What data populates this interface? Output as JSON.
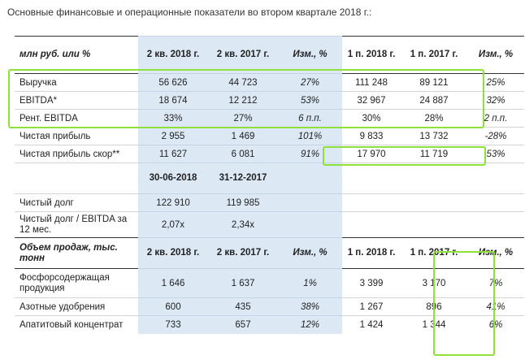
{
  "caption": "Основные финансовые и операционные показатели во втором квартале 2018 г.:",
  "highlight_color": "#dce9f5",
  "box_color": "#8ee03a",
  "financial": {
    "headers": [
      "млн руб. или %",
      "2 кв. 2018 г.",
      "2 кв. 2017 г.",
      "Изм., %",
      "1 п. 2018 г.",
      "1 п. 2017 г.",
      "Изм., %"
    ],
    "rows": [
      {
        "label": "Выручка",
        "values": [
          "56 626",
          "44 723",
          "27%",
          "111 248",
          "89 121",
          "25%"
        ]
      },
      {
        "label": "EBITDA*",
        "values": [
          "18 674",
          "12 212",
          "53%",
          "32 967",
          "24 887",
          "32%"
        ]
      },
      {
        "label": "Рент. EBITDA",
        "values": [
          "33%",
          "27%",
          "6 п.п.",
          "30%",
          "28%",
          "2 п.п."
        ]
      },
      {
        "label": "Чистая прибыль",
        "values": [
          "2 955",
          "1 469",
          "101%",
          "9 833",
          "13 732",
          "-28%"
        ]
      },
      {
        "label": "Чистая прибыль скор**",
        "values": [
          "11 627",
          "6 081",
          "91%",
          "17 970",
          "11 719",
          "53%"
        ]
      }
    ]
  },
  "debt": {
    "headers": [
      "30-06-2018",
      "31-12-2017"
    ],
    "rows": [
      {
        "label": "Чистый долг",
        "values": [
          "122 910",
          "119 985"
        ]
      },
      {
        "label": "Чистый долг / EBITDA за 12 мес.",
        "values": [
          "2,07x",
          "2,34x"
        ]
      }
    ]
  },
  "sales": {
    "headers": [
      "Объем продаж, тыс. тонн",
      "2 кв. 2018 г.",
      "2 кв. 2017 г.",
      "Изм., %",
      "1 п. 2018 г.",
      "1 п. 2017 г.",
      "Изм., %"
    ],
    "rows": [
      {
        "label": "Фосфорсодержащая продукция",
        "values": [
          "1 646",
          "1 637",
          "1%",
          "3 399",
          "3 170",
          "7%"
        ]
      },
      {
        "label": "Азотные удобрения",
        "values": [
          "600",
          "435",
          "38%",
          "1 267",
          "896",
          "41%"
        ]
      },
      {
        "label": "Апатитовый концентрат",
        "values": [
          "733",
          "657",
          "12%",
          "1 424",
          "1 344",
          "6%"
        ]
      }
    ]
  }
}
